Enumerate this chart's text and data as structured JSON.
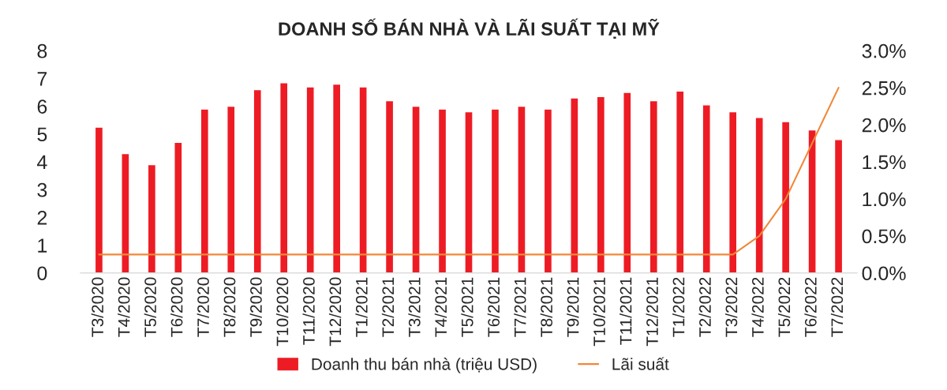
{
  "chart_data": {
    "type": "bar",
    "title": "DOANH SỐ BÁN NHÀ VÀ LÃI SUẤT TẠI MỸ",
    "categories": [
      "T3/2020",
      "T4/2020",
      "T5/2020",
      "T6/2020",
      "T7/2020",
      "T8/2020",
      "T9/2020",
      "T10/2020",
      "T11/2020",
      "T12/2020",
      "T1/2021",
      "T2/2021",
      "T3/2021",
      "T4/2021",
      "T5/2021",
      "T6/2021",
      "T7/2021",
      "T8/2021",
      "T9/2021",
      "T10/2021",
      "T11/2021",
      "T12/2021",
      "T1/2022",
      "T2/2022",
      "T3/2022",
      "T4/2022",
      "T5/2022",
      "T6/2022",
      "T7/2022"
    ],
    "series": [
      {
        "name": "Doanh thu bán nhà (triệu USD)",
        "color": "#ed1c24",
        "values": [
          5.25,
          4.3,
          3.9,
          4.7,
          5.9,
          6.0,
          6.6,
          6.85,
          6.7,
          6.8,
          6.7,
          6.2,
          6.0,
          5.9,
          5.8,
          5.9,
          6.0,
          5.9,
          6.3,
          6.35,
          6.5,
          6.2,
          6.55,
          6.05,
          5.8,
          5.6,
          5.45,
          5.15,
          4.8
        ]
      },
      {
        "name": "Lãi suất",
        "type": "line",
        "axis": "y2",
        "color": "#f0883a",
        "values": [
          0.25,
          0.25,
          0.25,
          0.25,
          0.25,
          0.25,
          0.25,
          0.25,
          0.25,
          0.25,
          0.25,
          0.25,
          0.25,
          0.25,
          0.25,
          0.25,
          0.25,
          0.25,
          0.25,
          0.25,
          0.25,
          0.25,
          0.25,
          0.25,
          0.25,
          0.5,
          1.0,
          1.75,
          2.5
        ]
      }
    ],
    "ylim": [
      0,
      8
    ],
    "yticks": [
      0,
      1,
      2,
      3,
      4,
      5,
      6,
      7,
      8
    ],
    "y2lim": [
      0,
      3
    ],
    "y2ticks": [
      {
        "value": 0,
        "label": "0.0%"
      },
      {
        "value": 0.5,
        "label": "0.5%"
      },
      {
        "value": 1,
        "label": "1.0%"
      },
      {
        "value": 1.5,
        "label": "1.5%"
      },
      {
        "value": 2,
        "label": "2.0%"
      },
      {
        "value": 2.5,
        "label": "2.5%"
      },
      {
        "value": 3,
        "label": "3.0%"
      }
    ],
    "grid": false,
    "legend": "bottom",
    "marker": "none",
    "line_style": "solid"
  }
}
